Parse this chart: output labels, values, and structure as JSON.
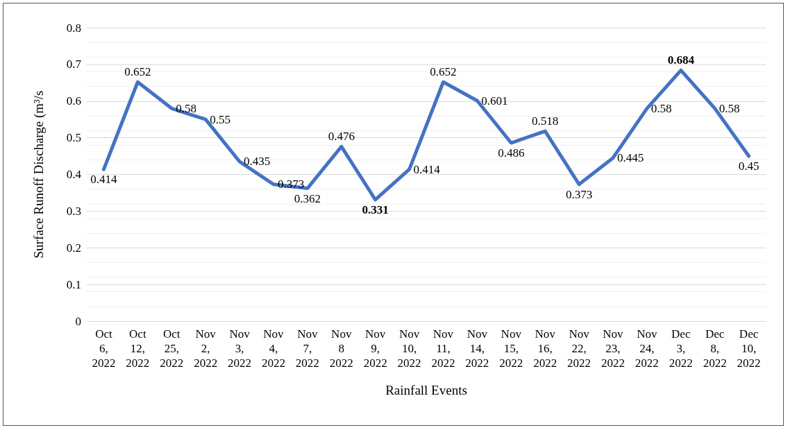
{
  "chart_data": {
    "type": "line",
    "xlabel": "Rainfall Events",
    "ylabel": "Surface Runoff Discharge (m³/s",
    "categories": [
      "Oct 6, 2022",
      "Oct 12, 2022",
      "Oct 25, 2022",
      "Nov 2, 2022",
      "Nov 3, 2022",
      "Nov 4, 2022",
      "Nov 7, 2022",
      "Nov 8 2022",
      "Nov 9, 2022",
      "Nov 10, 2022",
      "Nov 11, 2022",
      "Nov 14, 2022",
      "Nov 15, 2022",
      "Nov 16, 2022",
      "Nov 22, 2022",
      "Nov 23, 2022",
      "Nov 24, 2022",
      "Dec 3, 2022",
      "Dec 8, 2022",
      "Dec 10, 2022"
    ],
    "series": [
      {
        "color": "#4472c4",
        "values": [
          0.414,
          0.652,
          0.58,
          0.55,
          0.435,
          0.373,
          0.362,
          0.476,
          0.331,
          0.414,
          0.652,
          0.601,
          0.486,
          0.518,
          0.373,
          0.445,
          0.58,
          0.684,
          0.58,
          0.45
        ]
      }
    ],
    "ylim": [
      0,
      0.8
    ],
    "yticks": [
      0,
      0.1,
      0.2,
      0.3,
      0.4,
      0.5,
      0.6,
      0.7,
      0.8
    ],
    "grid": "y",
    "marker": "none",
    "line_style": "solid",
    "data_labels": true
  }
}
